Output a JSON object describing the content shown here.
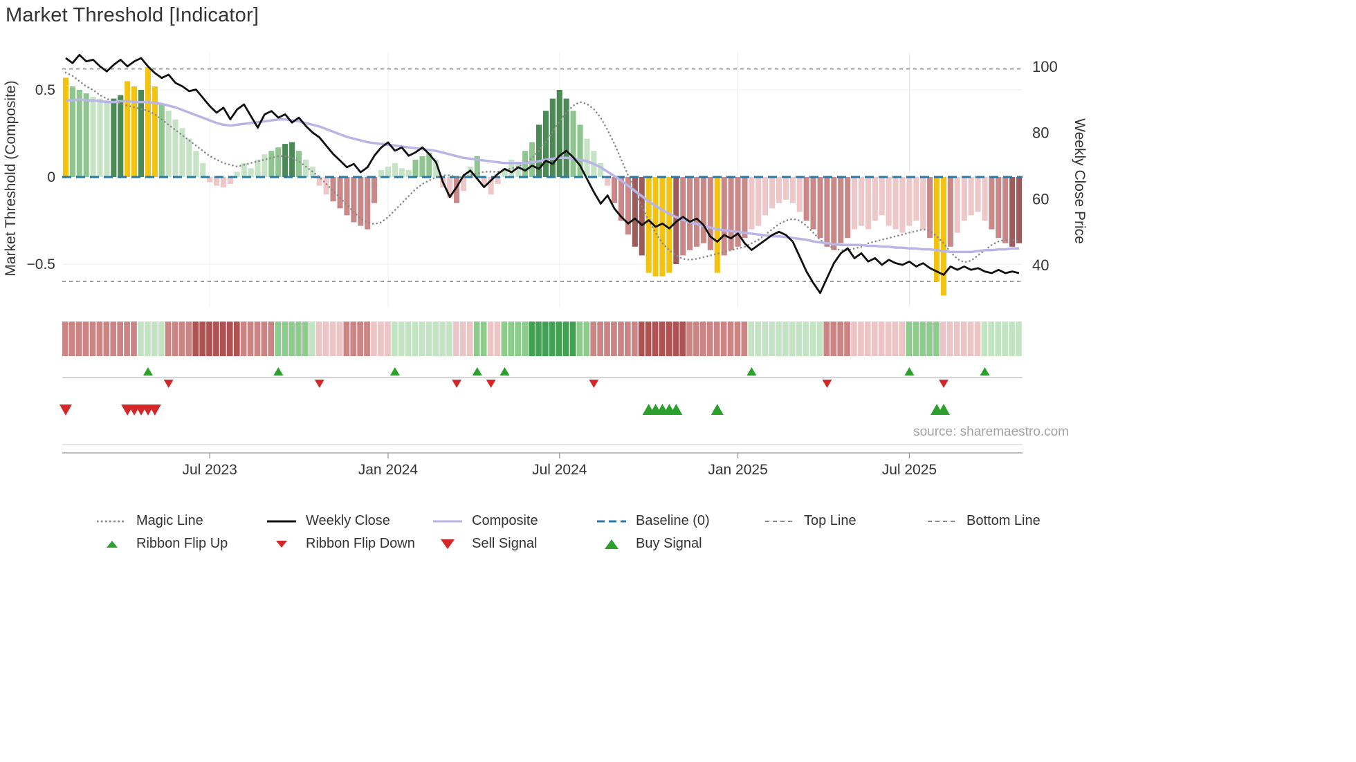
{
  "title": "Market Threshold [Indicator]",
  "source": "source: sharemaestro.com",
  "axes": {
    "left_label": "Market Threshold (Composite)",
    "right_label": "Weekly Close Price",
    "left_ticks": [
      {
        "v": 0.5,
        "label": "0.5"
      },
      {
        "v": 0,
        "label": "0"
      },
      {
        "v": -0.5,
        "label": "−0.5"
      }
    ],
    "right_ticks": [
      {
        "v": 100,
        "label": "100"
      },
      {
        "v": 80,
        "label": "80"
      },
      {
        "v": 60,
        "label": "60"
      },
      {
        "v": 40,
        "label": "40"
      }
    ],
    "x_ticks": [
      {
        "week": 21,
        "label": "Jul 2023"
      },
      {
        "week": 47,
        "label": "Jan 2024"
      },
      {
        "week": 72,
        "label": "Jul 2024"
      },
      {
        "week": 98,
        "label": "Jan 2025"
      },
      {
        "week": 123,
        "label": "Jul 2025"
      }
    ]
  },
  "palette": {
    "bar": {
      "Y": "#f3c311",
      "G1": "#c6e3c6",
      "G2": "#8fc58f",
      "G3": "#4c8a55",
      "R1": "#eec8c8",
      "R2": "#c98989",
      "R3": "#9d5b5b"
    },
    "ribbon": {
      "G1": "#c3e4c3",
      "G2": "#8ccd8c",
      "G3": "#41a051",
      "R1": "#ecc6c6",
      "R2": "#cc8585",
      "R3": "#b05252"
    },
    "lines": {
      "weekly_close": "#111111",
      "composite": "#b9b5e6",
      "magic": "#8a8a8a",
      "baseline": "#2878a8",
      "top_bottom": "#8a8a8a"
    },
    "markers": {
      "up": "#2ca02c",
      "down": "#d62728"
    },
    "grid": "#efefef",
    "axis": "#999999",
    "text": "#333333"
  },
  "chart_data": {
    "type": "bar",
    "overlays": [
      "line",
      "markers",
      "heatmap-ribbon"
    ],
    "weeks": 140,
    "left_ylim": [
      -0.75,
      0.7
    ],
    "right_ylim": [
      30,
      105
    ],
    "baseline": 0,
    "top_line": 0.62,
    "bottom_line": -0.6,
    "composite_bars": [
      0.57,
      0.52,
      0.5,
      0.48,
      0.46,
      0.45,
      0.44,
      0.45,
      0.47,
      0.55,
      0.52,
      0.5,
      0.63,
      0.52,
      0.42,
      0.38,
      0.33,
      0.28,
      0.22,
      0.15,
      0.08,
      -0.03,
      -0.05,
      -0.06,
      -0.04,
      0.03,
      0.08,
      0.05,
      0.1,
      0.13,
      0.15,
      0.17,
      0.19,
      0.2,
      0.15,
      0.1,
      0.06,
      -0.05,
      -0.1,
      -0.14,
      -0.18,
      -0.22,
      -0.26,
      -0.28,
      -0.3,
      -0.15,
      0.04,
      0.06,
      0.08,
      0.05,
      0.04,
      0.1,
      0.12,
      0.14,
      0.1,
      -0.06,
      -0.12,
      -0.15,
      -0.08,
      0.06,
      0.12,
      -0.05,
      -0.1,
      -0.04,
      0.05,
      0.1,
      0.08,
      0.15,
      0.2,
      0.3,
      0.38,
      0.45,
      0.5,
      0.45,
      0.38,
      0.3,
      0.22,
      0.15,
      0.08,
      -0.05,
      -0.15,
      -0.25,
      -0.33,
      -0.4,
      -0.45,
      -0.55,
      -0.57,
      -0.57,
      -0.55,
      -0.5,
      -0.45,
      -0.42,
      -0.4,
      -0.38,
      -0.42,
      -0.55,
      -0.45,
      -0.42,
      -0.4,
      -0.35,
      -0.3,
      -0.28,
      -0.22,
      -0.18,
      -0.15,
      -0.13,
      -0.15,
      -0.2,
      -0.25,
      -0.3,
      -0.35,
      -0.4,
      -0.42,
      -0.38,
      -0.35,
      -0.3,
      -0.28,
      -0.3,
      -0.25,
      -0.22,
      -0.28,
      -0.3,
      -0.32,
      -0.28,
      -0.25,
      -0.3,
      -0.35,
      -0.6,
      -0.68,
      -0.4,
      -0.32,
      -0.25,
      -0.22,
      -0.2,
      -0.25,
      -0.3,
      -0.35,
      -0.38,
      -0.4,
      -0.38
    ],
    "bar_colors": [
      "Y",
      "G2",
      "G2",
      "G2",
      "G1",
      "G1",
      "G1",
      "G3",
      "G3",
      "Y",
      "Y",
      "G3",
      "Y",
      "Y",
      "G2",
      "G1",
      "G1",
      "G1",
      "G1",
      "G1",
      "G1",
      "R1",
      "R1",
      "R1",
      "R1",
      "G1",
      "G1",
      "G1",
      "G1",
      "G1",
      "G2",
      "G2",
      "G3",
      "G3",
      "G2",
      "G1",
      "G1",
      "R1",
      "R1",
      "R2",
      "R2",
      "R2",
      "R2",
      "R2",
      "R2",
      "R2",
      "G1",
      "G1",
      "G1",
      "G1",
      "G1",
      "G2",
      "G2",
      "G2",
      "G1",
      "R1",
      "R1",
      "R2",
      "R1",
      "G1",
      "G2",
      "R1",
      "R1",
      "R1",
      "G1",
      "G1",
      "G1",
      "G2",
      "G2",
      "G3",
      "G3",
      "G3",
      "G3",
      "G3",
      "G2",
      "G2",
      "G1",
      "G1",
      "G1",
      "R1",
      "R2",
      "R2",
      "R2",
      "R3",
      "R3",
      "Y",
      "Y",
      "Y",
      "Y",
      "R3",
      "R2",
      "R2",
      "R2",
      "R2",
      "R2",
      "Y",
      "R2",
      "R2",
      "R2",
      "R2",
      "R1",
      "R1",
      "R1",
      "R1",
      "R1",
      "R1",
      "R1",
      "R1",
      "R2",
      "R2",
      "R2",
      "R2",
      "R2",
      "R2",
      "R2",
      "R1",
      "R1",
      "R1",
      "R1",
      "R1",
      "R1",
      "R1",
      "R1",
      "R1",
      "R1",
      "R1",
      "R2",
      "Y",
      "Y",
      "R2",
      "R1",
      "R1",
      "R1",
      "R1",
      "R1",
      "R2",
      "R2",
      "R2",
      "R3",
      "R3"
    ],
    "weekly_close": [
      102.5,
      101,
      103.5,
      101.5,
      102,
      100,
      98.5,
      100.5,
      102,
      100,
      101.5,
      102.5,
      100,
      98,
      96.5,
      97.5,
      95,
      94,
      92.5,
      93,
      90.5,
      88,
      86,
      87.5,
      84,
      87,
      88.5,
      85,
      81.5,
      85.5,
      86.5,
      84.5,
      85.5,
      83,
      84.5,
      82,
      80,
      78.5,
      76,
      73.5,
      71.5,
      69.5,
      70.5,
      68,
      69.5,
      73,
      75.5,
      77,
      74.5,
      75.5,
      73,
      74,
      75.5,
      73.5,
      71,
      65,
      60.5,
      63.5,
      67,
      68.5,
      66,
      63.5,
      65.5,
      67.5,
      69,
      68,
      69.5,
      68.5,
      70,
      69,
      71.5,
      70.5,
      73,
      74.5,
      72.5,
      70,
      66,
      62,
      58.5,
      61,
      57,
      54.5,
      52.5,
      54,
      52,
      53.5,
      51.5,
      52.5,
      51,
      53,
      54.5,
      53,
      54,
      52,
      48.5,
      47,
      49,
      48,
      49.5,
      46.5,
      44.5,
      46,
      47.5,
      49,
      50,
      49,
      47,
      42.5,
      38,
      34.5,
      31.5,
      36,
      40.5,
      43.5,
      45,
      42,
      43.5,
      41,
      42,
      40,
      41.5,
      40.5,
      40,
      41,
      39.5,
      40.5,
      39,
      38,
      37,
      39.5,
      38.5,
      39.5,
      38.5,
      39,
      38,
      37.5,
      38.5,
      37.5,
      38,
      37.5
    ],
    "composite_line": [
      0.44,
      0.44,
      0.445,
      0.44,
      0.44,
      0.435,
      0.43,
      0.43,
      0.435,
      0.435,
      0.43,
      0.43,
      0.43,
      0.425,
      0.42,
      0.41,
      0.4,
      0.385,
      0.37,
      0.355,
      0.34,
      0.325,
      0.31,
      0.3,
      0.295,
      0.3,
      0.305,
      0.31,
      0.315,
      0.32,
      0.325,
      0.33,
      0.33,
      0.325,
      0.32,
      0.31,
      0.3,
      0.29,
      0.275,
      0.26,
      0.245,
      0.23,
      0.22,
      0.21,
      0.2,
      0.195,
      0.19,
      0.185,
      0.18,
      0.175,
      0.17,
      0.165,
      0.16,
      0.155,
      0.15,
      0.14,
      0.13,
      0.12,
      0.11,
      0.105,
      0.1,
      0.095,
      0.09,
      0.085,
      0.08,
      0.08,
      0.08,
      0.08,
      0.085,
      0.09,
      0.1,
      0.105,
      0.11,
      0.11,
      0.105,
      0.1,
      0.09,
      0.075,
      0.055,
      0.03,
      0.005,
      -0.02,
      -0.05,
      -0.08,
      -0.11,
      -0.14,
      -0.165,
      -0.19,
      -0.21,
      -0.23,
      -0.245,
      -0.26,
      -0.27,
      -0.28,
      -0.29,
      -0.3,
      -0.305,
      -0.31,
      -0.315,
      -0.32,
      -0.325,
      -0.33,
      -0.335,
      -0.34,
      -0.34,
      -0.345,
      -0.35,
      -0.355,
      -0.36,
      -0.37,
      -0.375,
      -0.38,
      -0.385,
      -0.39,
      -0.39,
      -0.39,
      -0.39,
      -0.395,
      -0.395,
      -0.4,
      -0.4,
      -0.405,
      -0.405,
      -0.41,
      -0.41,
      -0.415,
      -0.415,
      -0.42,
      -0.425,
      -0.43,
      -0.43,
      -0.43,
      -0.43,
      -0.425,
      -0.42,
      -0.42,
      -0.415,
      -0.415,
      -0.41,
      -0.41
    ],
    "magic_line": [
      0.6,
      0.58,
      0.55,
      0.52,
      0.5,
      0.47,
      0.45,
      0.43,
      0.42,
      0.41,
      0.4,
      0.39,
      0.38,
      0.36,
      0.33,
      0.3,
      0.27,
      0.24,
      0.21,
      0.18,
      0.15,
      0.12,
      0.1,
      0.08,
      0.07,
      0.06,
      0.07,
      0.08,
      0.09,
      0.1,
      0.11,
      0.12,
      0.12,
      0.11,
      0.09,
      0.06,
      0.03,
      0,
      -0.04,
      -0.08,
      -0.12,
      -0.16,
      -0.2,
      -0.24,
      -0.26,
      -0.27,
      -0.26,
      -0.23,
      -0.19,
      -0.15,
      -0.11,
      -0.07,
      -0.04,
      -0.02,
      0,
      0.01,
      0.01,
      0,
      0,
      0.01,
      0.02,
      0.03,
      0.03,
      0.03,
      0.04,
      0.05,
      0.06,
      0.08,
      0.11,
      0.15,
      0.2,
      0.26,
      0.32,
      0.37,
      0.41,
      0.43,
      0.42,
      0.39,
      0.34,
      0.27,
      0.19,
      0.1,
      0.01,
      -0.08,
      -0.17,
      -0.25,
      -0.32,
      -0.38,
      -0.42,
      -0.45,
      -0.47,
      -0.475,
      -0.47,
      -0.46,
      -0.45,
      -0.44,
      -0.43,
      -0.42,
      -0.41,
      -0.4,
      -0.38,
      -0.36,
      -0.33,
      -0.3,
      -0.27,
      -0.25,
      -0.24,
      -0.25,
      -0.28,
      -0.32,
      -0.36,
      -0.39,
      -0.41,
      -0.42,
      -0.42,
      -0.41,
      -0.4,
      -0.38,
      -0.37,
      -0.36,
      -0.35,
      -0.34,
      -0.33,
      -0.32,
      -0.31,
      -0.3,
      -0.31,
      -0.34,
      -0.38,
      -0.43,
      -0.47,
      -0.49,
      -0.48,
      -0.45,
      -0.42,
      -0.39,
      -0.37,
      -0.36,
      -0.36,
      -0.37
    ],
    "ribbon": [
      "R2",
      "R2",
      "R2",
      "R2",
      "R2",
      "R2",
      "R2",
      "R2",
      "R2",
      "R2",
      "R2",
      "G1",
      "G1",
      "G1",
      "G1",
      "R2",
      "R2",
      "R2",
      "R2",
      "R3",
      "R3",
      "R3",
      "R3",
      "R3",
      "R3",
      "R3",
      "R2",
      "R2",
      "R2",
      "R2",
      "R2",
      "G2",
      "G2",
      "G2",
      "G2",
      "G2",
      "G1",
      "R1",
      "R1",
      "R1",
      "R1",
      "R2",
      "R2",
      "R2",
      "R2",
      "R1",
      "R1",
      "R1",
      "G1",
      "G1",
      "G1",
      "G1",
      "G1",
      "G1",
      "G1",
      "G1",
      "G1",
      "R1",
      "R1",
      "R1",
      "G2",
      "G2",
      "R1",
      "R1",
      "G2",
      "G2",
      "G2",
      "G2",
      "G3",
      "G3",
      "G3",
      "G3",
      "G3",
      "G3",
      "G3",
      "G2",
      "G2",
      "R2",
      "R2",
      "R2",
      "R2",
      "R2",
      "R2",
      "R2",
      "R3",
      "R3",
      "R3",
      "R3",
      "R3",
      "R3",
      "R3",
      "R2",
      "R2",
      "R2",
      "R2",
      "R2",
      "R2",
      "R2",
      "R2",
      "R2",
      "G1",
      "G1",
      "G1",
      "G1",
      "G1",
      "G1",
      "G1",
      "G1",
      "G1",
      "G1",
      "G1",
      "R2",
      "R2",
      "R2",
      "R2",
      "R1",
      "R1",
      "R1",
      "R1",
      "R1",
      "R1",
      "R1",
      "R1",
      "G2",
      "G2",
      "G2",
      "G2",
      "G2",
      "R1",
      "R1",
      "R1",
      "R1",
      "R1",
      "R1",
      "G1",
      "G1",
      "G1",
      "G1",
      "G1",
      "G1"
    ],
    "ribbon_flip_up_weeks": [
      12,
      31,
      48,
      60,
      64,
      100,
      123,
      134
    ],
    "ribbon_flip_down_weeks": [
      15,
      37,
      57,
      62,
      77,
      111,
      128
    ],
    "sell_signal_weeks": [
      0,
      9,
      10,
      11,
      12,
      13
    ],
    "buy_signal_weeks": [
      85,
      86,
      87,
      88,
      89,
      95,
      127,
      128
    ]
  },
  "legend": {
    "row1": [
      {
        "label": "Magic Line",
        "type": "dotted",
        "color": "#8a8a8a"
      },
      {
        "label": "Weekly Close",
        "type": "solid",
        "color": "#111111"
      },
      {
        "label": "Composite",
        "type": "solid",
        "color": "#b9b5e6"
      },
      {
        "label": "Baseline (0)",
        "type": "dashed-long",
        "color": "#2878a8"
      },
      {
        "label": "Top Line",
        "type": "dashed",
        "color": "#8a8a8a"
      },
      {
        "label": "Bottom Line",
        "type": "dashed",
        "color": "#8a8a8a"
      }
    ],
    "row2": [
      {
        "label": "Ribbon Flip Up",
        "type": "tri-up-sm",
        "color": "#2ca02c"
      },
      {
        "label": "Ribbon Flip Down",
        "type": "tri-down-sm",
        "color": "#d62728"
      },
      {
        "label": "Sell Signal",
        "type": "tri-down-lg",
        "color": "#d62728"
      },
      {
        "label": "Buy Signal",
        "type": "tri-up-lg",
        "color": "#2ca02c"
      }
    ]
  }
}
